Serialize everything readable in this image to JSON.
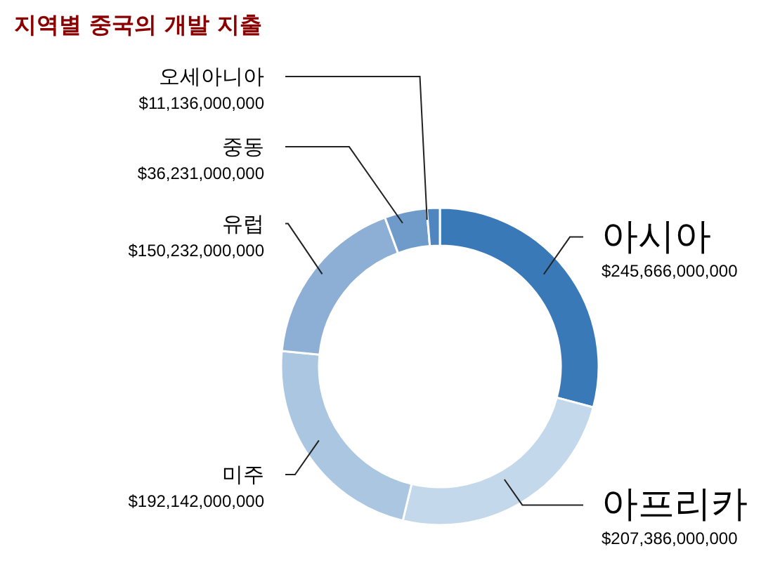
{
  "chart_data": {
    "type": "donut",
    "title": "지역별 중국의 개발 지출",
    "categories": [
      "아시아",
      "아프리카",
      "미주",
      "유럽",
      "중동",
      "오세아니아"
    ],
    "values": [
      245666000000,
      207386000000,
      192142000000,
      150232000000,
      36231000000,
      11136000000
    ],
    "value_labels": [
      "$245,666,000,000",
      "$207,386,000,000",
      "$192,142,000,000",
      "$150,232,000,000",
      "$36,231,000,000",
      "$11,136,000,000"
    ],
    "colors": [
      "#3a79b8",
      "#c4d8eb",
      "#aac6e1",
      "#8daed5",
      "#6f9bcb",
      "#4f86c0"
    ]
  }
}
